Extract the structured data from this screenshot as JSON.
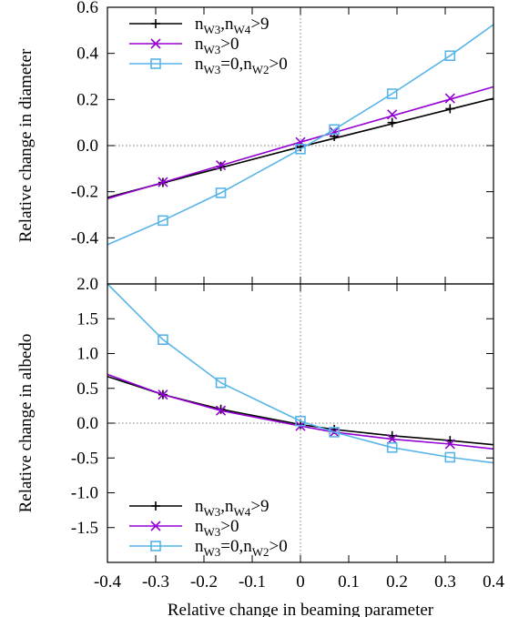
{
  "chart_data": [
    {
      "type": "line",
      "panel": "top",
      "ylabel": "Relative change in diameter",
      "xlim": [
        -0.4,
        0.4
      ],
      "ylim": [
        -0.6,
        0.6
      ],
      "yticks": [
        "0.6",
        "0.4",
        "0.2",
        "0.0",
        "-0.2",
        "-0.4"
      ],
      "ytick_values": [
        0.6,
        0.4,
        0.2,
        0.0,
        -0.2,
        -0.4
      ],
      "grid": false,
      "zero_lines": true,
      "legend_placement": "top-left",
      "series": [
        {
          "name": "nW3,nW4>9",
          "color": "#000000",
          "marker": "plus",
          "line_x": [
            -0.4,
            0.0,
            0.4
          ],
          "line_y": [
            -0.225,
            -0.005,
            0.205
          ],
          "marker_x": [
            -0.285,
            -0.165,
            0.0,
            0.07,
            0.19,
            0.31
          ],
          "marker_y": [
            -0.16,
            -0.09,
            -0.005,
            0.04,
            0.1,
            0.16
          ]
        },
        {
          "name": "nW3>0",
          "color": "#9400d3",
          "marker": "x",
          "line_x": [
            -0.4,
            0.0,
            0.4
          ],
          "line_y": [
            -0.23,
            0.015,
            0.255
          ],
          "marker_x": [
            -0.285,
            -0.165,
            0.0,
            0.07,
            0.19,
            0.31
          ],
          "marker_y": [
            -0.158,
            -0.085,
            0.015,
            0.06,
            0.135,
            0.205
          ]
        },
        {
          "name": "nW3=0,nW2>0",
          "color": "#56b4e9",
          "marker": "square",
          "line_x": [
            -0.4,
            -0.285,
            -0.165,
            0.0,
            0.07,
            0.19,
            0.31,
            0.4
          ],
          "line_y": [
            -0.43,
            -0.325,
            -0.205,
            -0.015,
            0.07,
            0.225,
            0.39,
            0.525
          ],
          "marker_x": [
            -0.285,
            -0.165,
            0.0,
            0.07,
            0.19,
            0.31
          ],
          "marker_y": [
            -0.325,
            -0.205,
            -0.015,
            0.07,
            0.225,
            0.39
          ]
        }
      ]
    },
    {
      "type": "line",
      "panel": "bottom",
      "ylabel": "Relative change in albedo",
      "xlabel": "Relative change in beaming parameter",
      "xlim": [
        -0.4,
        0.4
      ],
      "ylim": [
        -2.0,
        2.0
      ],
      "xticks": [
        "-0.4",
        "-0.3",
        "-0.2",
        "-0.1",
        "0",
        "0.1",
        "0.2",
        "0.3",
        "0.4"
      ],
      "xtick_values": [
        -0.4,
        -0.3,
        -0.2,
        -0.1,
        0.0,
        0.1,
        0.2,
        0.3,
        0.4
      ],
      "yticks": [
        "2.0",
        "1.5",
        "1.0",
        "0.5",
        "0.0",
        "-0.5",
        "-1.0",
        "-1.5"
      ],
      "ytick_values": [
        2.0,
        1.5,
        1.0,
        0.5,
        0.0,
        -0.5,
        -1.0,
        -1.5
      ],
      "grid": false,
      "zero_lines": true,
      "legend_placement": "bottom-left",
      "series": [
        {
          "name": "nW3,nW4>9",
          "color": "#000000",
          "marker": "plus",
          "line_x": [
            -0.4,
            -0.285,
            -0.165,
            0.0,
            0.07,
            0.19,
            0.31,
            0.4
          ],
          "line_y": [
            0.67,
            0.41,
            0.2,
            -0.02,
            -0.09,
            -0.18,
            -0.25,
            -0.31
          ],
          "marker_x": [
            -0.285,
            -0.165,
            0.0,
            0.07,
            0.19,
            0.31
          ],
          "marker_y": [
            0.41,
            0.2,
            -0.02,
            -0.09,
            -0.18,
            -0.25
          ]
        },
        {
          "name": "nW3>0",
          "color": "#9400d3",
          "marker": "x",
          "line_x": [
            -0.4,
            -0.285,
            -0.165,
            0.0,
            0.07,
            0.19,
            0.31,
            0.4
          ],
          "line_y": [
            0.7,
            0.41,
            0.18,
            -0.04,
            -0.13,
            -0.23,
            -0.3,
            -0.37
          ],
          "marker_x": [
            -0.285,
            -0.165,
            0.0,
            0.07,
            0.19,
            0.31
          ],
          "marker_y": [
            0.41,
            0.18,
            -0.04,
            -0.13,
            -0.23,
            -0.3
          ]
        },
        {
          "name": "nW3=0,nW2>0",
          "color": "#56b4e9",
          "marker": "square",
          "line_x": [
            -0.4,
            -0.285,
            -0.165,
            0.0,
            0.07,
            0.19,
            0.31,
            0.4
          ],
          "line_y": [
            2.0,
            1.2,
            0.58,
            0.03,
            -0.13,
            -0.35,
            -0.49,
            -0.57
          ],
          "marker_x": [
            -0.285,
            -0.165,
            0.0,
            0.07,
            0.19,
            0.31
          ],
          "marker_y": [
            1.2,
            0.58,
            0.03,
            -0.13,
            -0.35,
            -0.49
          ]
        }
      ]
    }
  ],
  "legend": [
    {
      "base": "n",
      "sub1": "W3",
      "mid": ",n",
      "sub2": "W4",
      "tail": ">9"
    },
    {
      "base": "n",
      "sub1": "W3",
      "mid": "",
      "sub2": "",
      "tail": ">0"
    },
    {
      "base": "n",
      "sub1": "W3",
      "mid": "=0,n",
      "sub2": "W2",
      "tail": ">0"
    }
  ]
}
